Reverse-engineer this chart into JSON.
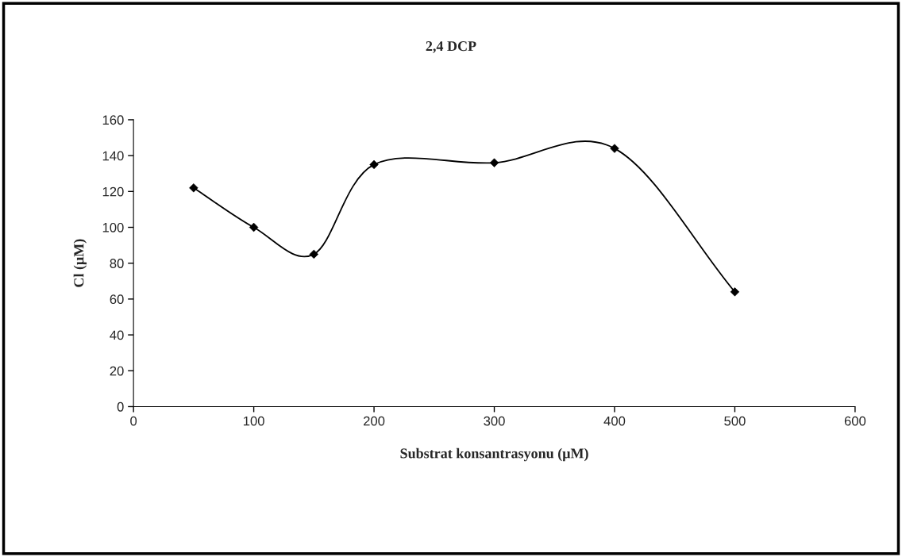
{
  "chart_data": {
    "type": "line",
    "title": "2,4 DCP",
    "xlabel": "Substrat konsantrasyonu (μM)",
    "ylabel": "Cl (μM)",
    "x": [
      50,
      100,
      150,
      200,
      300,
      400,
      500
    ],
    "series": [
      {
        "color": "#000000",
        "values": [
          122,
          100,
          85,
          135,
          136,
          144,
          64
        ]
      }
    ],
    "xlim": [
      0,
      600
    ],
    "xticks": [
      0,
      100,
      200,
      300,
      400,
      500,
      600
    ],
    "ylim": [
      0,
      160
    ],
    "yticks": [
      0,
      20,
      40,
      60,
      80,
      100,
      120,
      140,
      160
    ],
    "grid": false,
    "legend": false,
    "marker": "diamond",
    "line_style": "solid"
  }
}
